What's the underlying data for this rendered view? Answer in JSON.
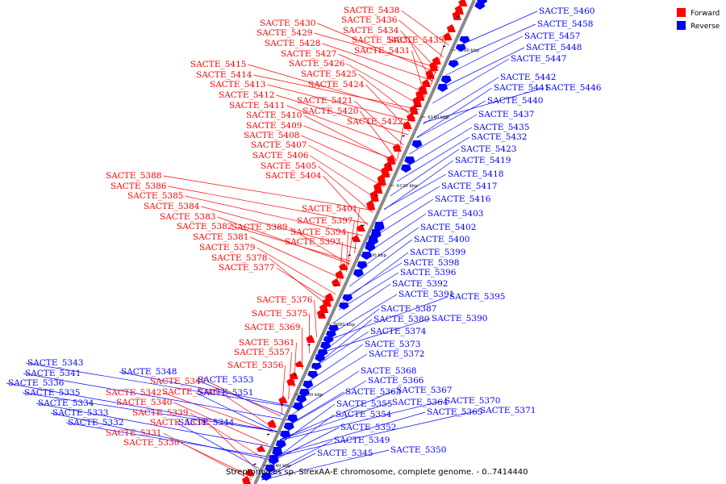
{
  "title": "Streptomyces sp. SirexAA-E chromosome, complete genome. - 0..7414440",
  "legend": [
    {
      "label": "Forward",
      "color": "#ff0000"
    },
    {
      "label": "Reverse",
      "color": "#0000ff"
    }
  ],
  "colors": {
    "forward": "#ff0000",
    "reverse": "#0000ff",
    "axis": "#8a8a8a"
  },
  "ticks": [
    "6040 kbp",
    "6060 kbp",
    "6080 kbp",
    "6100 kbp",
    "6120 kbp",
    "6140 kbp",
    "6160 kbp"
  ],
  "forward_genes": [
    "SACTE_5438",
    "SACTE_5436",
    "SACTE_5434",
    "SACTE_5433",
    "SACTE_5439",
    "SACTE_5431",
    "SACTE_5430",
    "SACTE_5429",
    "SACTE_5428",
    "SACTE_5427",
    "SACTE_5426",
    "SACTE_5425",
    "SACTE_5424",
    "SACTE_5415",
    "SACTE_5414",
    "SACTE_5413",
    "SACTE_5412",
    "SACTE_5411",
    "SACTE_5421",
    "SACTE_5410",
    "SACTE_5420",
    "SACTE_5409",
    "SACTE_5422",
    "SACTE_5408",
    "SACTE_5407",
    "SACTE_5406",
    "SACTE_5405",
    "SACTE_5404",
    "SACTE_5388",
    "SACTE_5386",
    "SACTE_5385",
    "SACTE_5384",
    "SACTE_5401",
    "SACTE_5383",
    "SACTE_5397",
    "SACTE_5382",
    "SACTE_5389",
    "SACTE_5394",
    "SACTE_5381",
    "SACTE_5393",
    "SACTE_5379",
    "SACTE_5378",
    "SACTE_5377",
    "SACTE_5376",
    "SACTE_5375",
    "SACTE_5369",
    "SACTE_5361",
    "SACTE_5357",
    "SACTE_5356",
    "SACTE_5347",
    "SACTE_5346",
    "SACTE_5342",
    "SACTE_5340",
    "SACTE_5339",
    "SACTE_5338",
    "SACTE_5331",
    "SACTE_5330"
  ],
  "reverse_genes": [
    "SACTE_5460",
    "SACTE_5458",
    "SACTE_5457",
    "SACTE_5448",
    "SACTE_5447",
    "SACTE_5442",
    "SACTE_5441",
    "SACTE_5446",
    "SACTE_5440",
    "SACTE_5437",
    "SACTE_5435",
    "SACTE_5432",
    "SACTE_5423",
    "SACTE_5419",
    "SACTE_5418",
    "SACTE_5417",
    "SACTE_5416",
    "SACTE_5403",
    "SACTE_5402",
    "SACTE_5400",
    "SACTE_5399",
    "SACTE_5398",
    "SACTE_5396",
    "SACTE_5392",
    "SACTE_5391",
    "SACTE_5395",
    "SACTE_5387",
    "SACTE_5380",
    "SACTE_5390",
    "SACTE_5374",
    "SACTE_5373",
    "SACTE_5372",
    "SACTE_5368",
    "SACTE_5366",
    "SACTE_5367",
    "SACTE_5363",
    "SACTE_5364",
    "SACTE_5370",
    "SACTE_5355",
    "SACTE_5365",
    "SACTE_5371",
    "SACTE_5354",
    "SACTE_5352",
    "SACTE_5349",
    "SACTE_5350",
    "SACTE_5345",
    "SACTE_5343",
    "SACTE_5341",
    "SACTE_5336",
    "SACTE_5348",
    "SACTE_5353",
    "SACTE_5335",
    "SACTE_5351",
    "SACTE_5334",
    "SACTE_5333",
    "SACTE_5344",
    "SACTE_5332"
  ]
}
